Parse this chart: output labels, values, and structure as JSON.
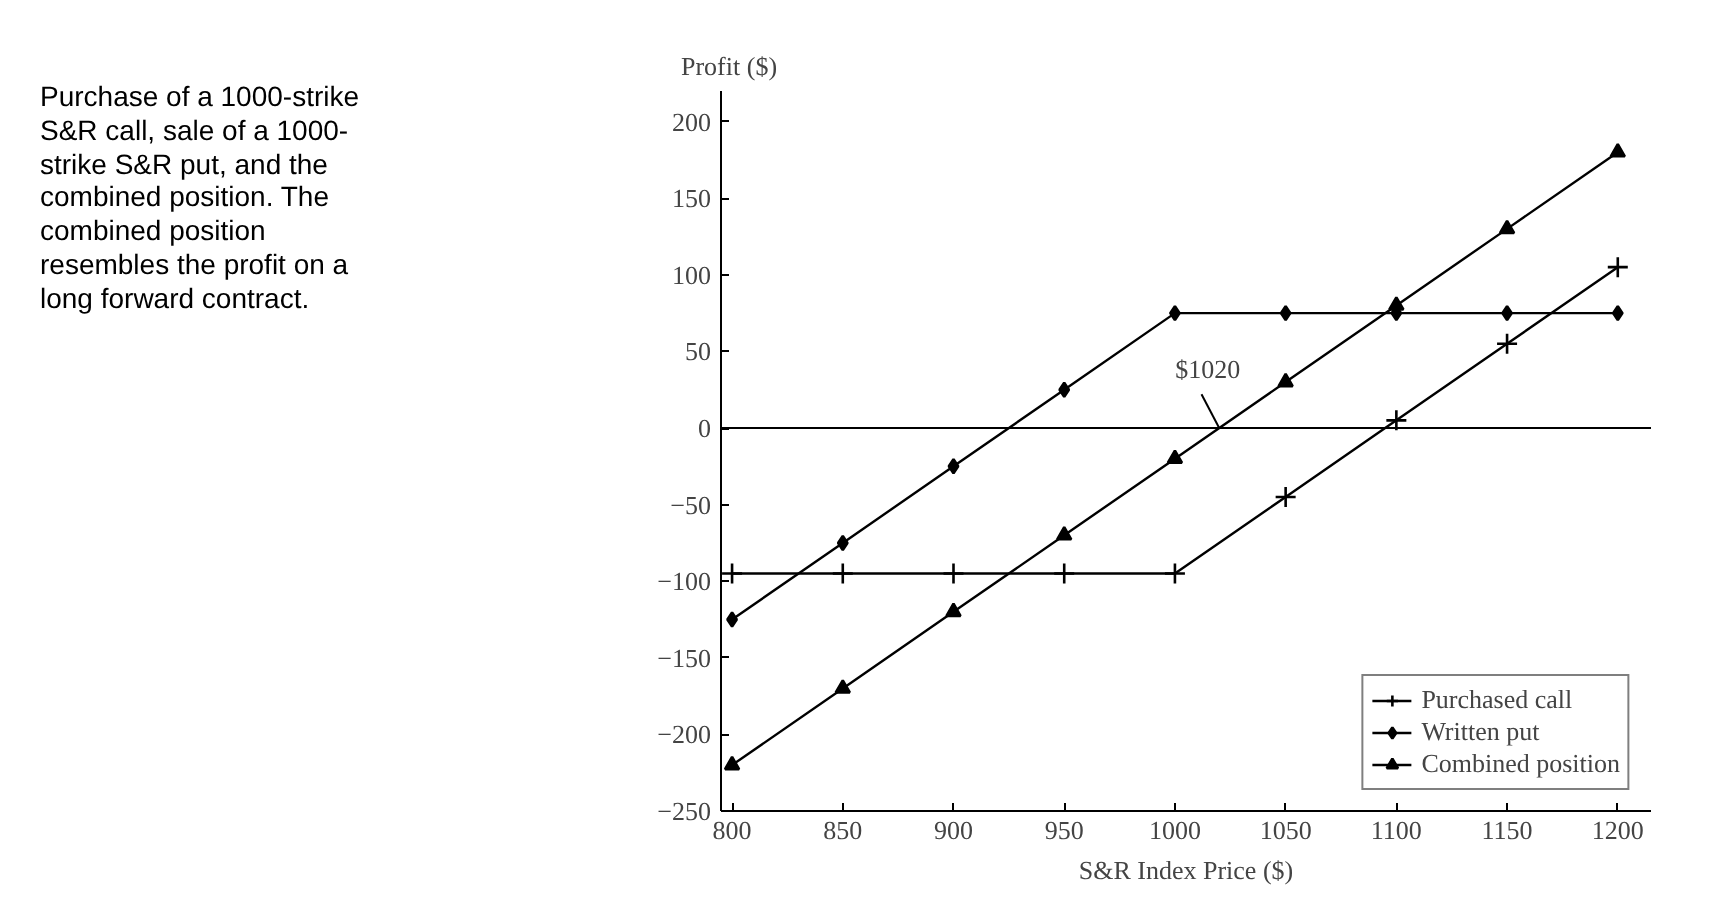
{
  "chart_data": {
    "type": "line",
    "xlabel": "S&R Index Price ($)",
    "ylabel": "Profit ($)",
    "x": [
      800,
      850,
      900,
      950,
      1000,
      1050,
      1100,
      1150,
      1200
    ],
    "series": [
      {
        "name": "Purchased call",
        "color": "#000000",
        "marker": "cross",
        "values": [
          -95,
          -95,
          -95,
          -95,
          -95,
          -45,
          5,
          55,
          105
        ]
      },
      {
        "name": "Written put",
        "color": "#000000",
        "marker": "diamond",
        "values": [
          -125,
          -75,
          -25,
          25,
          75,
          75,
          75,
          75,
          75
        ]
      },
      {
        "name": "Combined position",
        "color": "#000000",
        "marker": "triangle",
        "values": [
          -220,
          -170,
          -120,
          -70,
          -20,
          30,
          80,
          130,
          180
        ]
      }
    ],
    "xlim": [
      795,
      1215
    ],
    "ylim": [
      -250,
      220
    ],
    "xticks": [
      800,
      850,
      900,
      950,
      1000,
      1050,
      1100,
      1150,
      1200
    ],
    "yticks": [
      -250,
      -200,
      -150,
      -100,
      -50,
      0,
      50,
      100,
      150,
      200
    ],
    "ref_lines": [
      {
        "axis": "y",
        "value": 0,
        "label": null
      }
    ],
    "annotations": [
      "Purchase of a 1000-strike S&R call, sale of a 1000-strike S&R put, and the combined position. The combined position resembles the profit on a long forward contract.",
      {
        "text": "$1020",
        "x": 1020,
        "y": 0
      }
    ],
    "grid": false,
    "legend": "bottom right",
    "line_style": "solid"
  }
}
